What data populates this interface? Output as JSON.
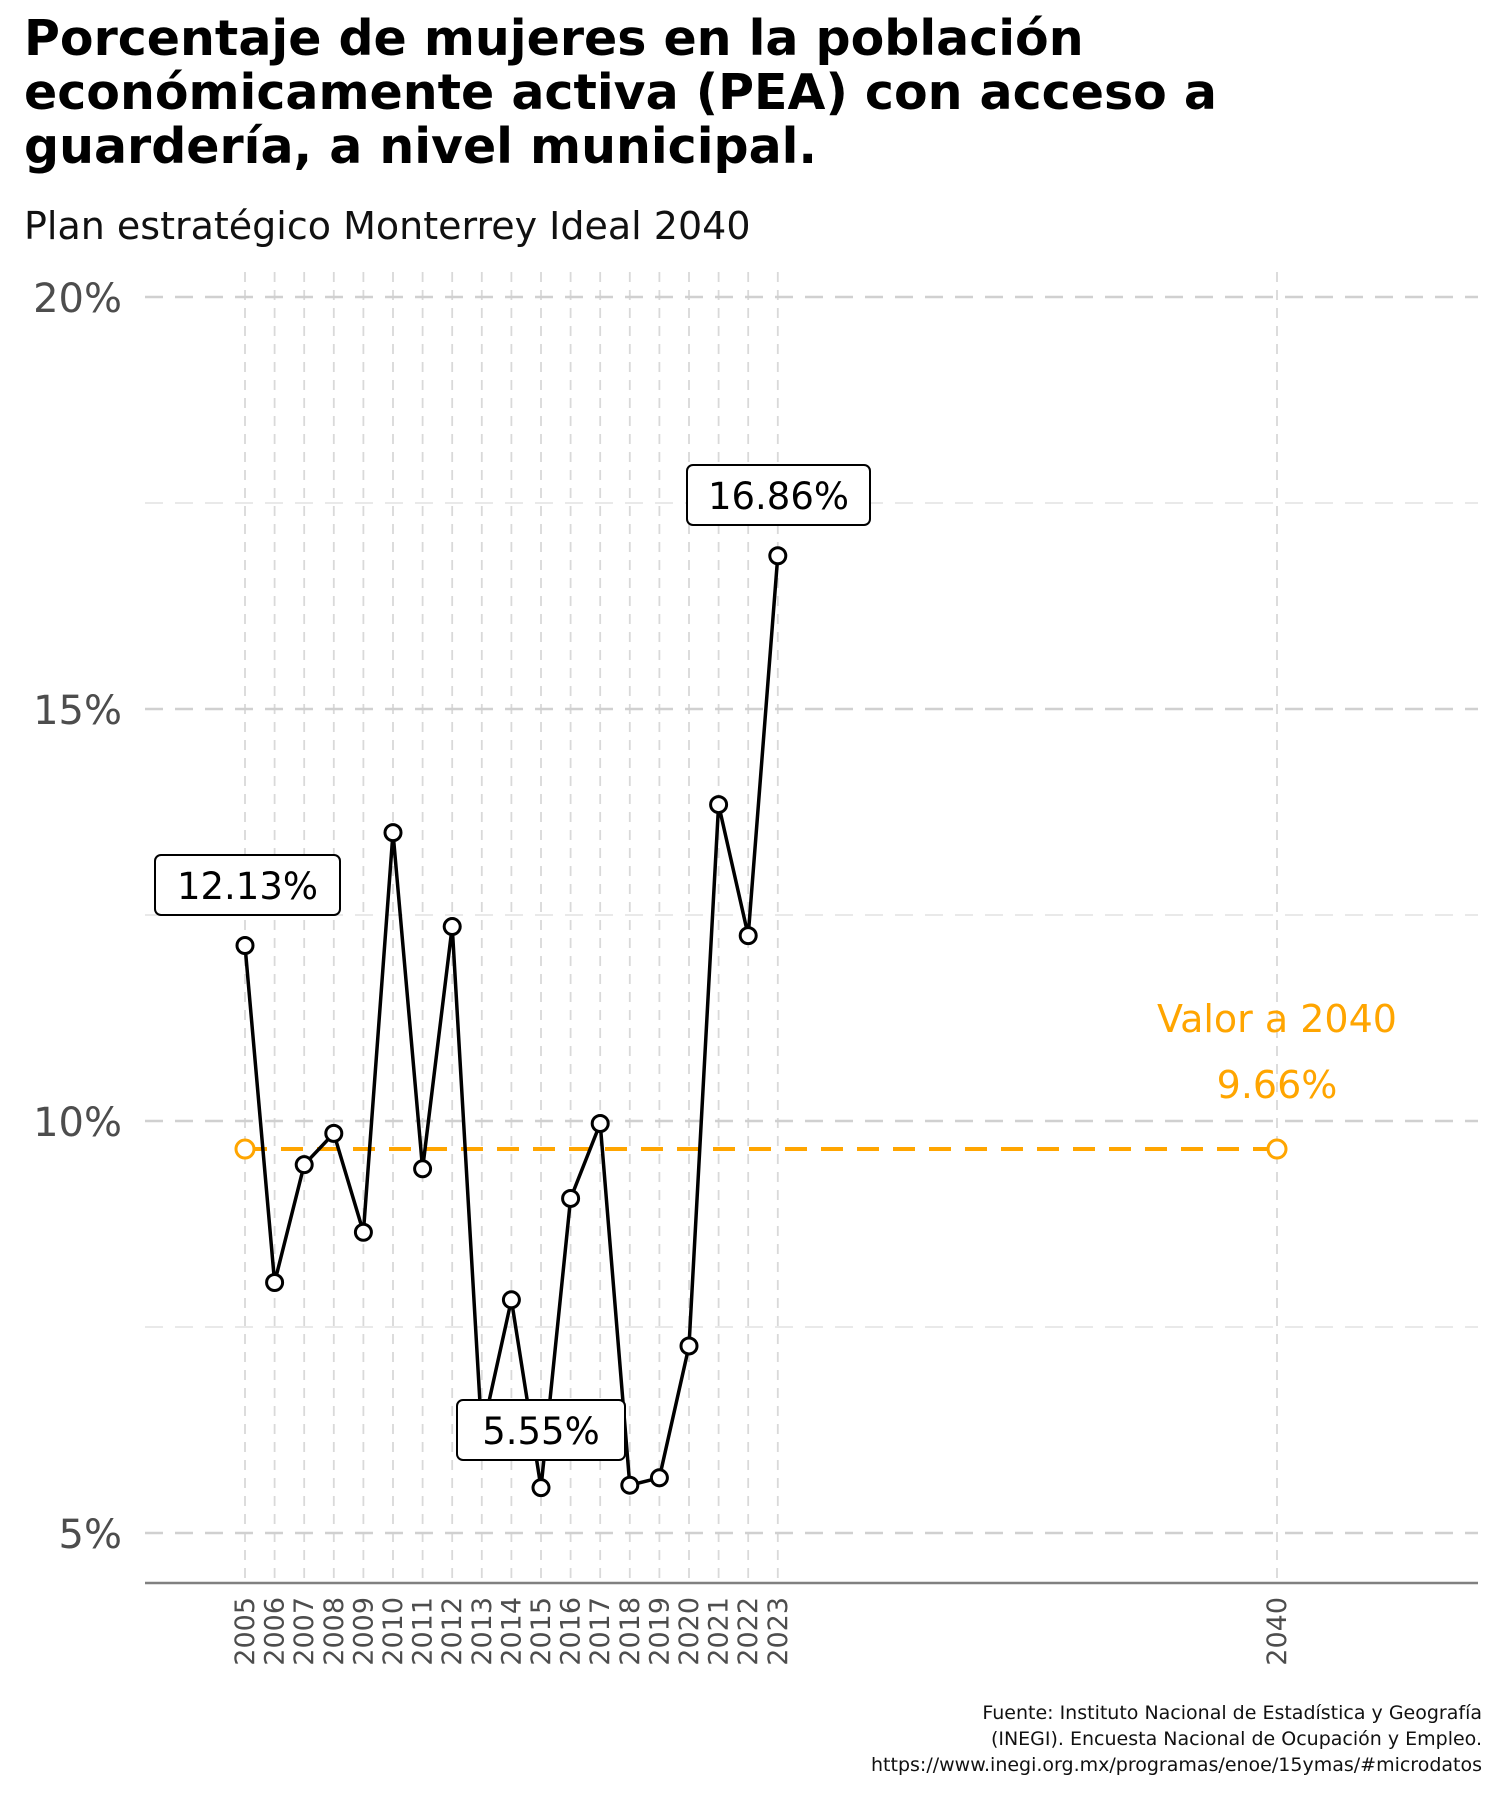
{
  "title": "Porcentaje de mujeres en la población económicamente activa (PEA) con acceso a guardería, a nivel municipal.",
  "subtitle": "Plan estratégico Monterrey Ideal 2040",
  "caption_lines": [
    "Fuente: Instituto Nacional de Estadística y Geografía",
    "(INEGI). Encuesta Nacional de Ocupación y Empleo.",
    "https://www.inegi.org.mx/programas/enoe/15ymas/#microdatos"
  ],
  "colors": {
    "line": "#000000",
    "target": "#FFA500",
    "grid": "#d9d9d9",
    "axis": "#808080",
    "tick_text": "#4d4d4d"
  },
  "chart_data": {
    "type": "line",
    "title": "Porcentaje de mujeres en la población económicamente activa (PEA) con acceso a guardería, a nivel municipal.",
    "subtitle": "Plan estratégico Monterrey Ideal 2040",
    "xlabel": "",
    "ylabel": "",
    "x_ticks": [
      "2005",
      "2006",
      "2007",
      "2008",
      "2009",
      "2010",
      "2011",
      "2012",
      "2013",
      "2014",
      "2015",
      "2016",
      "2017",
      "2018",
      "2019",
      "2020",
      "2021",
      "2022",
      "2023",
      "2040"
    ],
    "y_ticks": [
      "5%",
      "10%",
      "15%",
      "20%"
    ],
    "ylim": [
      4.45,
      20.1
    ],
    "grid": true,
    "series": [
      {
        "x": [
          2005,
          2006,
          2007,
          2008,
          2009,
          2010,
          2011,
          2012,
          2013,
          2014,
          2015,
          2016,
          2017,
          2018,
          2019,
          2020,
          2021,
          2022,
          2023
        ],
        "values": [
          12.13,
          8.04,
          9.47,
          9.85,
          8.65,
          13.5,
          9.42,
          12.36,
          6.2,
          7.83,
          5.55,
          9.06,
          9.97,
          5.58,
          5.67,
          7.27,
          13.84,
          12.25,
          16.86
        ]
      }
    ],
    "target": {
      "x": [
        2005,
        2040
      ],
      "value": 9.66,
      "label_line1": "Valor a 2040",
      "label_line2": "9.66%"
    },
    "annotations": [
      {
        "x": 2005,
        "value": 12.13,
        "text": "12.13%"
      },
      {
        "x": 2015,
        "value": 5.55,
        "text": "5.55%"
      },
      {
        "x": 2023,
        "value": 16.86,
        "text": "16.86%"
      }
    ]
  }
}
